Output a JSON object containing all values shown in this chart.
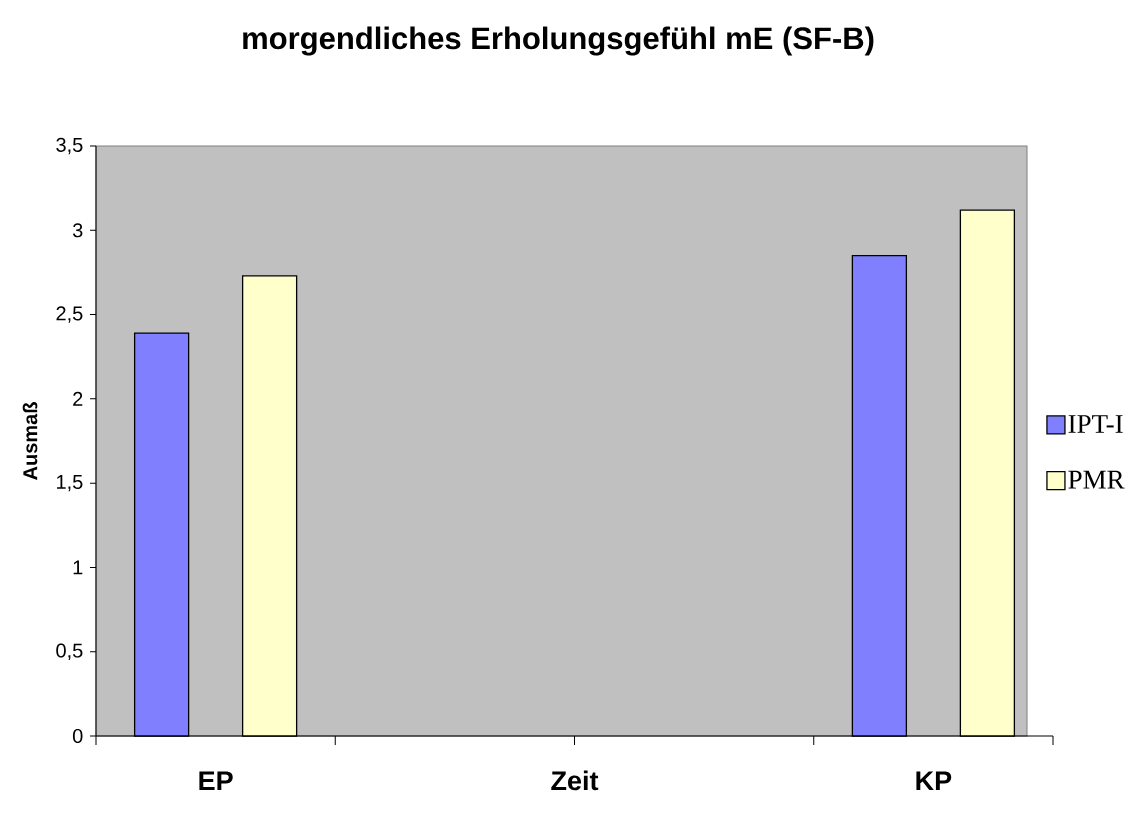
{
  "chart_data": {
    "type": "bar",
    "title": "morgendliches Erholungsgefühl mE   (SF-B)",
    "xlabel": "Zeit",
    "ylabel": "Ausmaß",
    "categories": [
      "EP",
      null,
      null,
      "KP"
    ],
    "series": [
      {
        "name": "IPT-I",
        "color": "#8080ff",
        "values": [
          2.39,
          null,
          null,
          2.85
        ]
      },
      {
        "name": "PMR",
        "color": "#ffffcc",
        "values": [
          2.73,
          null,
          null,
          3.12
        ]
      }
    ],
    "ylim": [
      0,
      3.5
    ],
    "yticks": [
      0,
      {
        "value": 0.5,
        "label": "0,5"
      },
      1,
      {
        "value": 1.5,
        "label": "1,5"
      },
      2,
      {
        "value": 2.5,
        "label": "2,5"
      },
      3,
      {
        "value": 3.5,
        "label": "3,5"
      }
    ],
    "grid": false,
    "legend": "right"
  }
}
